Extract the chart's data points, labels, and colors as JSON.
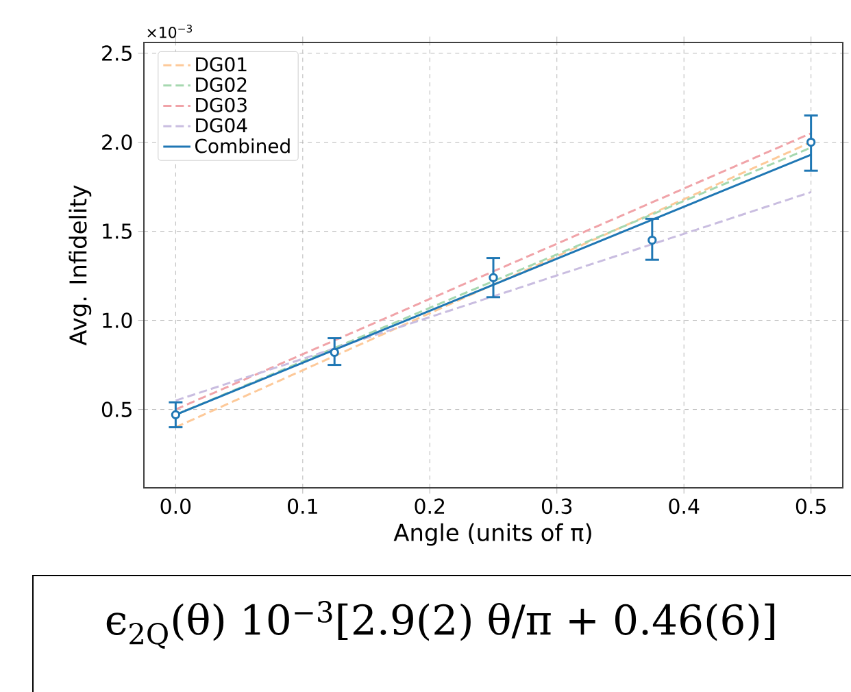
{
  "chart_data": {
    "type": "line",
    "xlabel": "Angle (units of π)",
    "ylabel": "Avg. Infidelity",
    "xlim": [
      -0.025,
      0.525
    ],
    "ylim": [
      0.06,
      2.56
    ],
    "xticks": [
      {
        "value": 0,
        "label": "0.0"
      },
      {
        "value": 0.1,
        "label": "0.1"
      },
      {
        "value": 0.2,
        "label": "0.2"
      },
      {
        "value": 0.3,
        "label": "0.3"
      },
      {
        "value": 0.4,
        "label": "0.4"
      },
      {
        "value": 0.5,
        "label": "0.5"
      }
    ],
    "yticks": [
      {
        "value": 0.5,
        "label": "0.5"
      },
      {
        "value": 1.0,
        "label": "1.0"
      },
      {
        "value": 1.5,
        "label": "1.5"
      },
      {
        "value": 2.0,
        "label": "2.0"
      },
      {
        "value": 2.5,
        "label": "2.5"
      }
    ],
    "grid": true,
    "legend": "top left",
    "series": [
      {
        "name": "DG01",
        "color": "#fdc999",
        "line_style": "dashed",
        "x": [
          0,
          0.5
        ],
        "values": [
          0.4,
          2.0
        ]
      },
      {
        "name": "DG02",
        "color": "#a6d8b0",
        "line_style": "dashed",
        "x": [
          0,
          0.5
        ],
        "values": [
          0.47,
          1.97
        ]
      },
      {
        "name": "DG03",
        "color": "#f0a3a8",
        "line_style": "dashed",
        "x": [
          0,
          0.5
        ],
        "values": [
          0.5,
          2.05
        ]
      },
      {
        "name": "DG04",
        "color": "#c9bde0",
        "line_style": "dashed",
        "x": [
          0,
          0.5
        ],
        "values": [
          0.55,
          1.72
        ]
      },
      {
        "name": "Combined",
        "color": "#1f77b4",
        "line_style": "solid",
        "x": [
          0,
          0.5
        ],
        "values": [
          0.47,
          1.93
        ]
      },
      {
        "type": "scatter",
        "color": "#1f77b4",
        "marker": "circle",
        "x": [
          0,
          0.125,
          0.25,
          0.375,
          0.5
        ],
        "values": [
          0.47,
          0.82,
          1.24,
          1.45,
          2.0
        ],
        "errors": [
          [
            0.4,
            0.54
          ],
          [
            0.75,
            0.9
          ],
          [
            1.13,
            1.35
          ],
          [
            1.34,
            1.57
          ],
          [
            1.84,
            2.15
          ]
        ]
      }
    ],
    "annotations": [
      "×10$^{−3}$",
      "ϵ$_{2Q}$(θ) 10$^{−3}$[2.9(2) θ/π + 0.46(6)]"
    ]
  }
}
